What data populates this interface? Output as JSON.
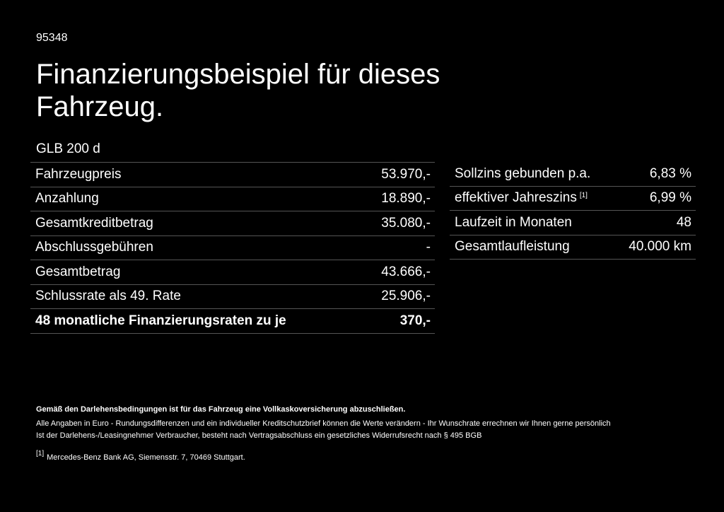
{
  "header": {
    "id": "95348",
    "title": "Finanzierungsbeispiel für dieses Fahrzeug.",
    "model": "GLB 200 d"
  },
  "left_table": {
    "rows": [
      [
        "Fahrzeugpreis",
        "53.970,-"
      ],
      [
        "Anzahlung",
        "18.890,-"
      ],
      [
        "Gesamtkreditbetrag",
        "35.080,-"
      ],
      [
        "Abschlussgebühren",
        "-"
      ],
      [
        "Gesamtbetrag",
        "43.666,-"
      ],
      [
        "Schlussrate als 49. Rate",
        "25.906,-"
      ],
      [
        "48 monatliche Finanzierungsraten zu je",
        "370,-"
      ]
    ]
  },
  "right_table": {
    "rows": [
      [
        "Sollzins gebunden p.a.",
        "6,83 %"
      ],
      [
        "effektiver Jahreszins",
        "6,99 %"
      ],
      [
        "Laufzeit in Monaten",
        "48"
      ],
      [
        "Gesamtlaufleistung",
        "40.000 km"
      ]
    ],
    "footnote_ref": "[1]"
  },
  "footer": {
    "notes": [
      "Gemäß den Darlehensbedingungen ist für das Fahrzeug eine Vollkaskoversicherung abzuschließen.",
      "Alle Angaben in Euro - Rundungsdifferenzen und ein individueller Kreditschutzbrief können die Werte verändern - Ihr Wunschrate errechnen wir Ihnen gerne persönlich",
      "Ist der Darlehens-/Leasingnehmer Verbraucher, besteht nach Vertragsabschluss ein gesetzliches Widerrufsrecht nach § 495 BGB"
    ],
    "footnote_marker": "[1]",
    "footnote_text": "Mercedes-Benz Bank AG, Siemensstr. 7, 70469 Stuttgart."
  }
}
